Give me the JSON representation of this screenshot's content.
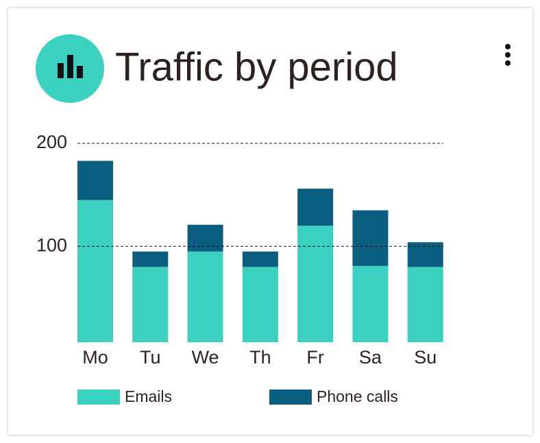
{
  "chart_data": {
    "type": "stacked_bar",
    "title": "Traffic by period",
    "categories": [
      "Mo",
      "Tu",
      "We",
      "Th",
      "Fr",
      "Sa",
      "Su"
    ],
    "series": [
      {
        "name": "Emails",
        "color": "#3bd1c0",
        "values": [
          145,
          80,
          95,
          80,
          120,
          81,
          80
        ]
      },
      {
        "name": "Phone calls",
        "color": "#0a5f80",
        "values": [
          38,
          15,
          26,
          15,
          36,
          54,
          24
        ]
      }
    ],
    "ylim": [
      7,
      200
    ],
    "yticks": [
      100,
      200
    ],
    "grid": true
  }
}
